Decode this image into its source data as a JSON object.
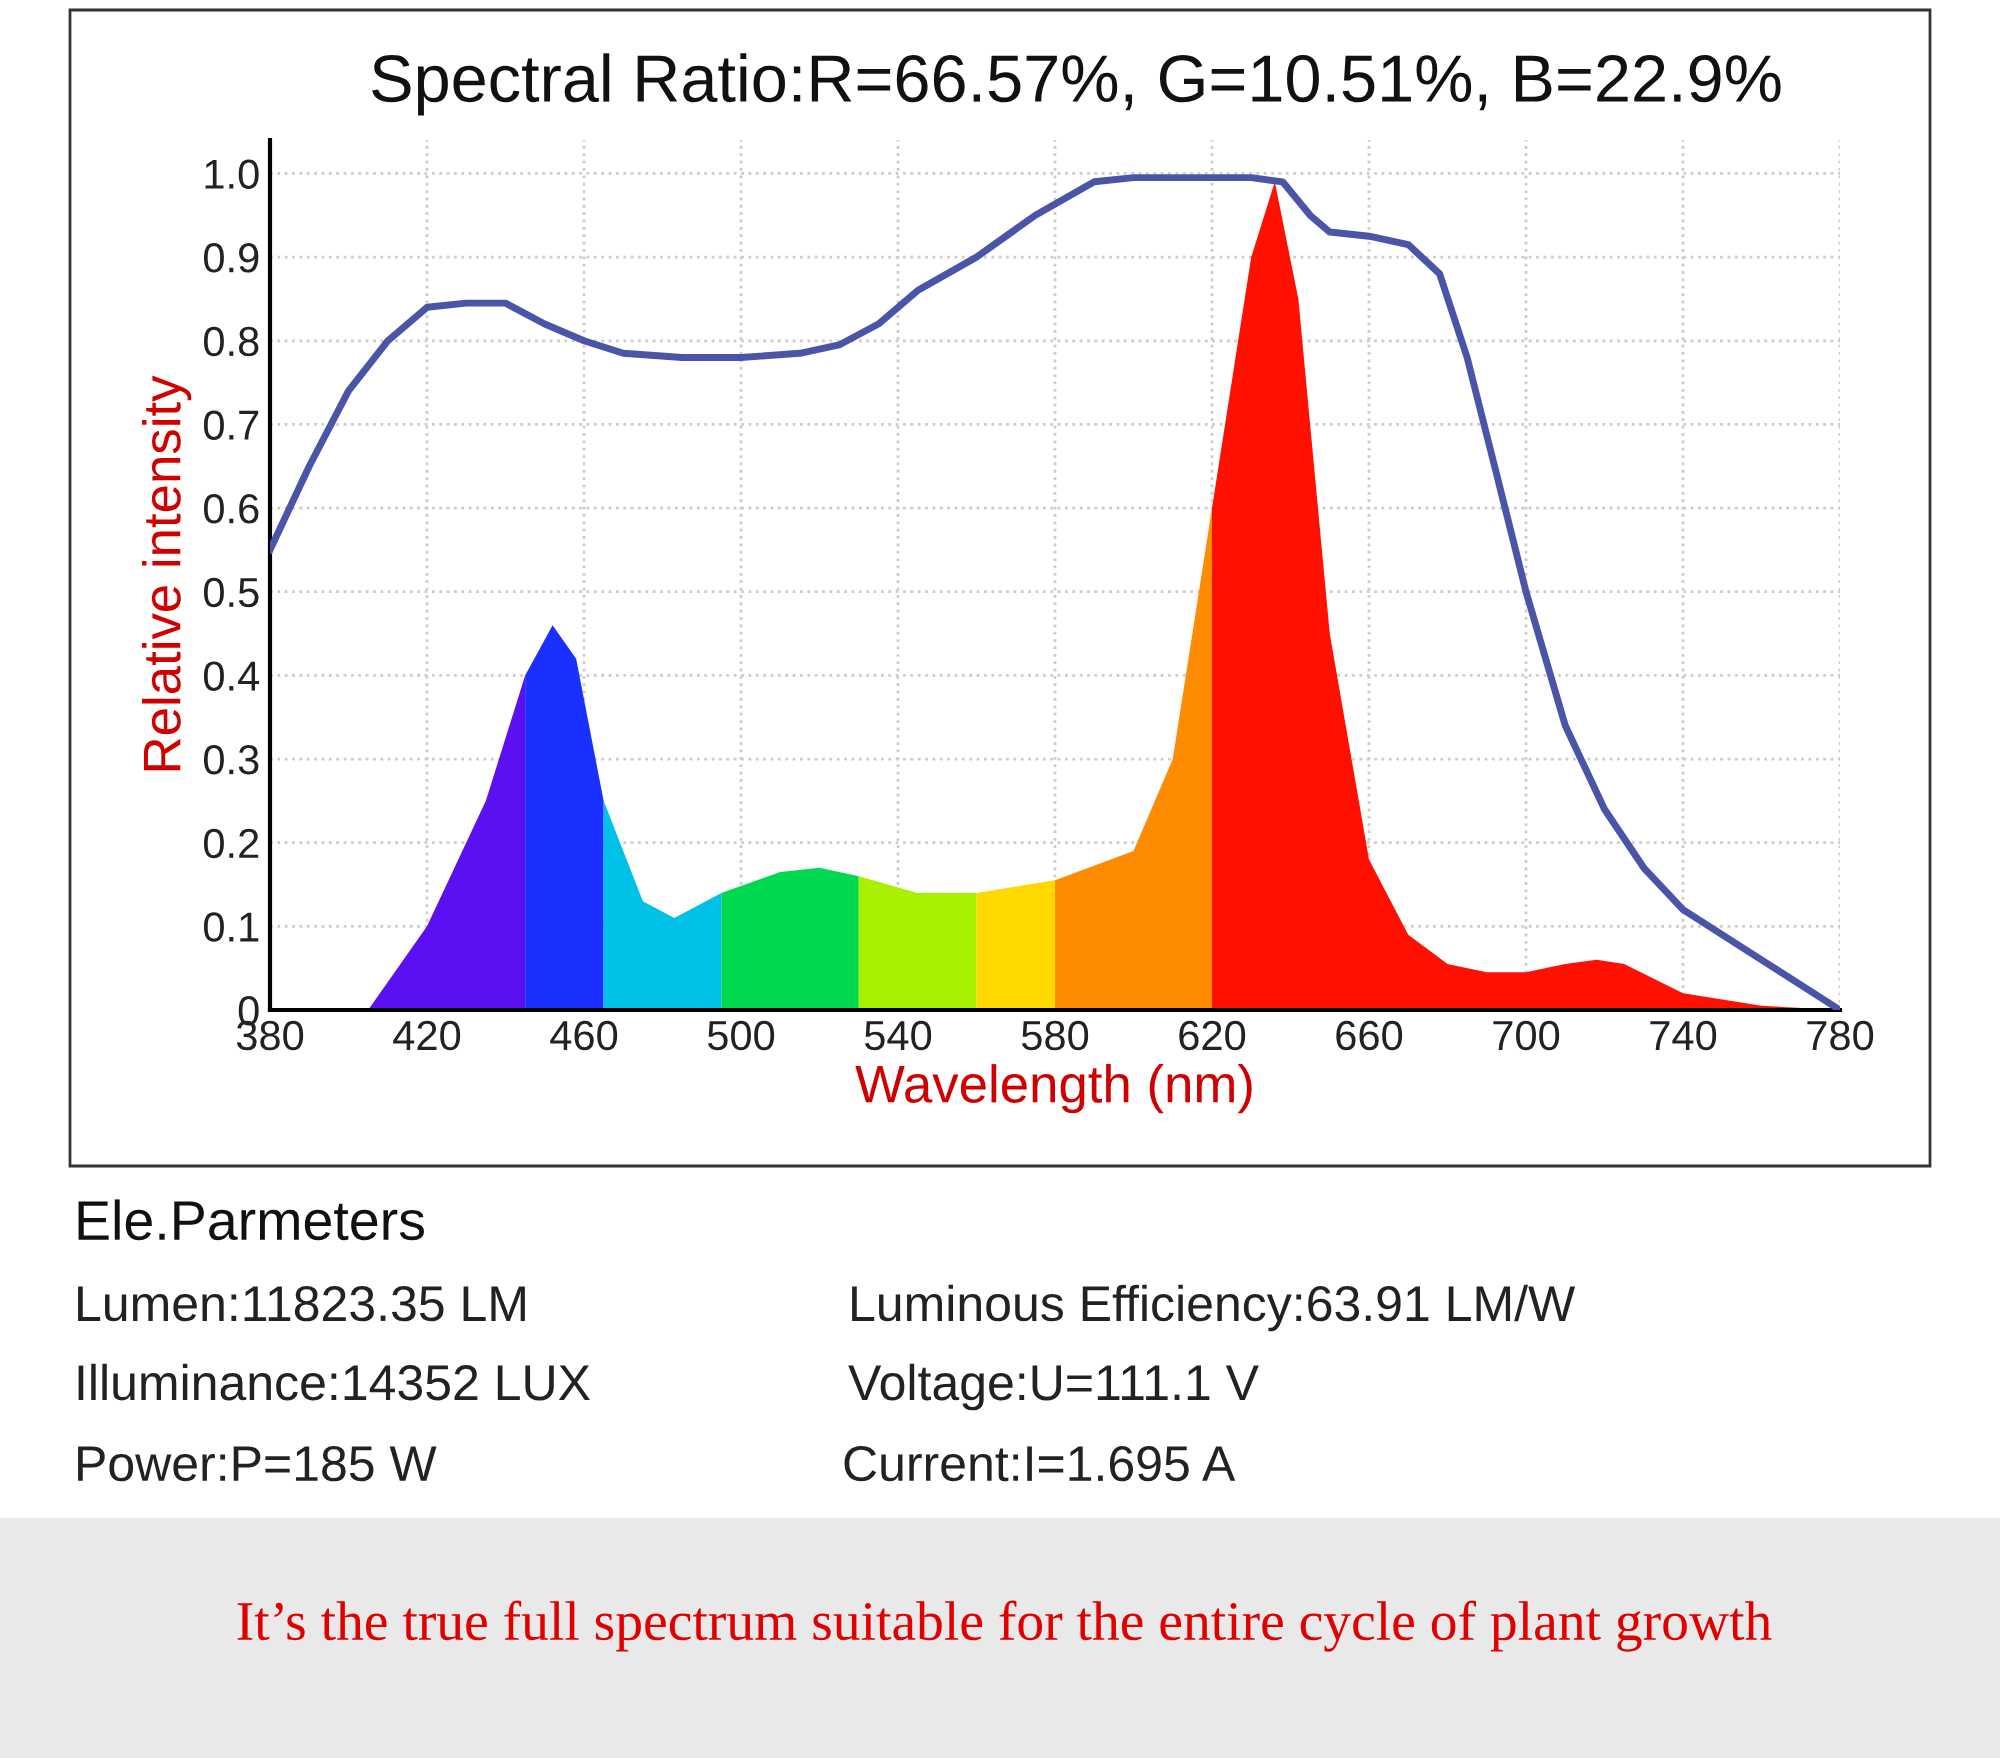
{
  "chart_data": {
    "type": "area",
    "title": "Spectral Ratio:R=66.57%, G=10.51%, B=22.9%",
    "xlabel": "Wavelength (nm)",
    "ylabel": "Relative intensity",
    "xlim": [
      380,
      780
    ],
    "xticks": [
      380,
      420,
      460,
      500,
      540,
      580,
      620,
      660,
      700,
      740,
      780
    ],
    "ylim": [
      0,
      1.04
    ],
    "yticks": [
      {
        "value": 0,
        "label": "0"
      },
      0.1,
      0.2,
      0.3,
      0.4,
      0.5,
      0.6,
      0.7,
      0.8,
      0.9,
      {
        "value": 1.0,
        "label": "1.0"
      }
    ],
    "grid": true,
    "series": [
      {
        "color": "#5a10f0",
        "x": [
          405,
          420,
          435,
          445
        ],
        "values": [
          0,
          0.1,
          0.25,
          0.4
        ]
      },
      {
        "color": "#1a30ff",
        "x": [
          445,
          452,
          458,
          465
        ],
        "values": [
          0.4,
          0.46,
          0.42,
          0.25
        ]
      },
      {
        "color": "#00c0e8",
        "x": [
          465,
          475,
          483,
          495
        ],
        "values": [
          0.25,
          0.13,
          0.11,
          0.14
        ]
      },
      {
        "color": "#00d850",
        "x": [
          495,
          510,
          520,
          530
        ],
        "values": [
          0.14,
          0.165,
          0.17,
          0.16
        ]
      },
      {
        "color": "#a8f000",
        "x": [
          530,
          545,
          560
        ],
        "values": [
          0.16,
          0.14,
          0.14
        ]
      },
      {
        "color": "#ffd800",
        "x": [
          560,
          580
        ],
        "values": [
          0.14,
          0.155
        ]
      },
      {
        "color": "#ff8c00",
        "x": [
          580,
          600,
          610,
          620
        ],
        "values": [
          0.155,
          0.19,
          0.3,
          0.6
        ]
      },
      {
        "color": "#ff1000",
        "x": [
          620,
          630,
          636,
          642,
          650,
          660,
          670,
          680,
          690,
          700,
          710,
          718,
          725,
          740,
          760,
          780
        ],
        "values": [
          0.6,
          0.9,
          0.99,
          0.85,
          0.45,
          0.18,
          0.09,
          0.055,
          0.045,
          0.045,
          0.055,
          0.06,
          0.055,
          0.02,
          0.005,
          0
        ]
      },
      {
        "type": "line",
        "color": "#4a55a8",
        "x": [
          380,
          390,
          400,
          410,
          420,
          430,
          440,
          450,
          460,
          470,
          485,
          500,
          515,
          525,
          535,
          545,
          560,
          575,
          590,
          600,
          615,
          630,
          638,
          645,
          650,
          660,
          670,
          678,
          685,
          692,
          700,
          710,
          720,
          730,
          740,
          760,
          780
        ],
        "values": [
          0.55,
          0.65,
          0.74,
          0.8,
          0.84,
          0.845,
          0.845,
          0.82,
          0.8,
          0.785,
          0.78,
          0.78,
          0.785,
          0.795,
          0.82,
          0.86,
          0.9,
          0.95,
          0.99,
          0.995,
          0.995,
          0.995,
          0.99,
          0.95,
          0.93,
          0.925,
          0.915,
          0.88,
          0.78,
          0.65,
          0.5,
          0.34,
          0.24,
          0.17,
          0.12,
          0.06,
          0
        ]
      }
    ],
    "annotations": [
      "Ele.Parmeters",
      "Lumen:11823.35 LM",
      "Luminous Efficiency:63.91 LM/W",
      "Illuminance:14352 LUX",
      "Voltage:U=111.1 V",
      "Power:P=185 W",
      "Current:I=1.695 A",
      "It’s the true full spectrum suitable for the entire cycle of plant growth"
    ]
  }
}
